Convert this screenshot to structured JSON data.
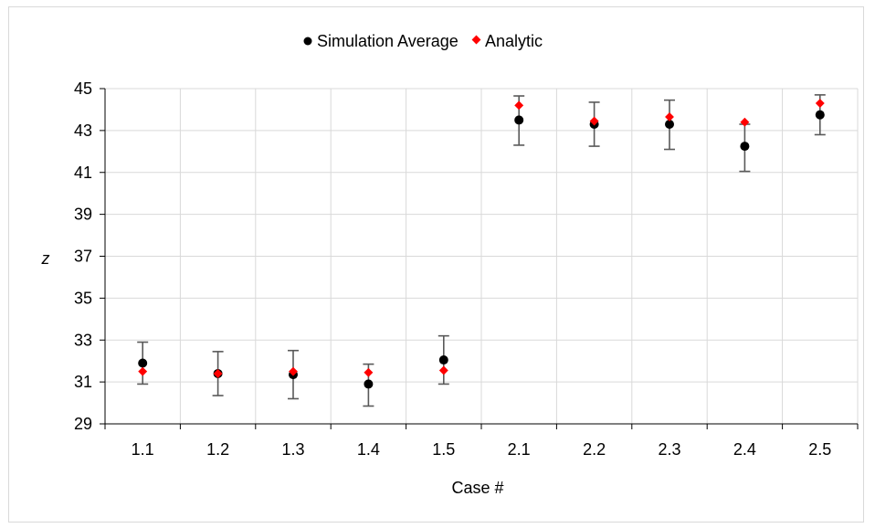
{
  "chart_data": {
    "type": "scatter",
    "title": "",
    "xlabel": "Case #",
    "ylabel": "z",
    "categories": [
      "1.1",
      "1.2",
      "1.3",
      "1.4",
      "1.5",
      "2.1",
      "2.2",
      "2.3",
      "2.4",
      "2.5"
    ],
    "ylim": [
      29,
      45
    ],
    "yticks": [
      29,
      31,
      33,
      35,
      37,
      39,
      41,
      43,
      45
    ],
    "grid": true,
    "legend_position": "top",
    "series": [
      {
        "name": "Simulation Average",
        "marker": "circle",
        "color": "#000000",
        "values": [
          31.9,
          31.4,
          31.35,
          30.9,
          32.05,
          43.5,
          43.3,
          43.3,
          42.25,
          43.75
        ],
        "error_low": [
          30.9,
          30.35,
          30.2,
          29.85,
          30.9,
          42.3,
          42.25,
          42.1,
          41.05,
          42.8
        ],
        "error_high": [
          32.9,
          32.45,
          32.5,
          31.85,
          33.2,
          44.65,
          44.35,
          44.45,
          43.3,
          44.7
        ]
      },
      {
        "name": "Analytic",
        "marker": "diamond",
        "color": "#ff0000",
        "values": [
          31.5,
          31.4,
          31.5,
          31.45,
          31.55,
          44.2,
          43.45,
          43.65,
          43.4,
          44.3
        ]
      }
    ],
    "colors": {
      "error_bar": "#595959",
      "grid": "#d9d9d9",
      "axis": "#000000"
    }
  }
}
